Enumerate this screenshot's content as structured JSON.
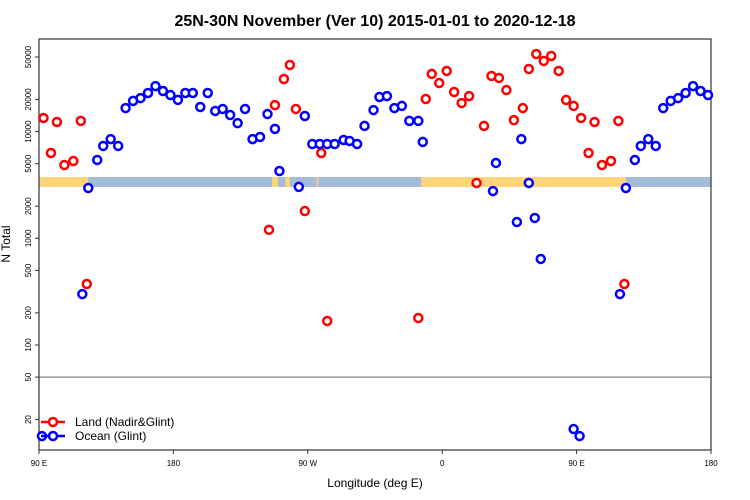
{
  "chart_data": {
    "type": "scatter",
    "title": "25N-30N November (Ver 10)   2015-01-01 to 2020-12-18",
    "xlabel": "Longitude (deg E)",
    "ylabel": "N Total",
    "x_ticks": [
      {
        "lon": 90,
        "label": "90 E"
      },
      {
        "lon": 180,
        "label": "180"
      },
      {
        "lon": -90,
        "label": "90 W"
      },
      {
        "lon": 0,
        "label": "0"
      },
      {
        "lon": 90,
        "label": "90 E"
      },
      {
        "lon": 180,
        "label": "180"
      }
    ],
    "x_range": "90 E to 180 (eastward, 450 degrees; 90 E to 180 shown twice)",
    "y_scale": "log",
    "ylim": [
      8,
      75000
    ],
    "y_ticks": [
      20,
      50,
      100,
      200,
      500,
      1000,
      2000,
      5000,
      10000,
      20000,
      50000
    ],
    "reference_line_y": 50,
    "grid": false,
    "legend_position": "bottom-left",
    "colors": {
      "land": "#ff0000",
      "ocean": "#0000ff",
      "band_land": "#fed679",
      "band_ocean": "#a6bbd8",
      "refline": "#9a9a9a"
    },
    "surface_band_land_lon_ranges": [
      [
        -114,
        -110
      ],
      [
        -105,
        -102
      ],
      [
        -84,
        -83
      ],
      [
        -14,
        123
      ]
    ],
    "series": [
      {
        "name": "Land (Nadir&Glint)",
        "points": [
          [
            -116,
            1200
          ],
          [
            -112,
            17700
          ],
          [
            -106,
            31100
          ],
          [
            -102,
            42100
          ],
          [
            -98,
            16300
          ],
          [
            -92,
            1800
          ],
          [
            -81,
            6300
          ],
          [
            -77,
            168
          ],
          [
            -16,
            179
          ],
          [
            -11,
            20200
          ],
          [
            -7,
            34700
          ],
          [
            -2,
            28500
          ],
          [
            3,
            37000
          ],
          [
            8,
            23500
          ],
          [
            13,
            18500
          ],
          [
            18,
            21500
          ],
          [
            23,
            3300
          ],
          [
            28,
            11300
          ],
          [
            33,
            33200
          ],
          [
            38,
            31800
          ],
          [
            43,
            24500
          ],
          [
            48,
            12800
          ],
          [
            54,
            16600
          ],
          [
            58,
            38600
          ],
          [
            63,
            53300
          ],
          [
            68,
            45900
          ],
          [
            73,
            51100
          ],
          [
            78,
            37000
          ],
          [
            83,
            19800
          ],
          [
            88,
            17400
          ],
          [
            93,
            13400
          ],
          [
            98,
            6300
          ],
          [
            102,
            12300
          ],
          [
            107,
            4860
          ],
          [
            113,
            5300
          ],
          [
            118,
            12600
          ],
          [
            122,
            373
          ]
        ]
      },
      {
        "name": "Ocean (Glint)",
        "points": [
          [
            -177,
            19800
          ],
          [
            -172,
            23000
          ],
          [
            -167,
            23000
          ],
          [
            -162,
            17000
          ],
          [
            -157,
            23000
          ],
          [
            -152,
            15600
          ],
          [
            -147,
            16300
          ],
          [
            -142,
            14300
          ],
          [
            -137,
            12000
          ],
          [
            -132,
            16300
          ],
          [
            -127,
            8500
          ],
          [
            -122,
            8900
          ],
          [
            -117,
            14600
          ],
          [
            -112,
            10600
          ],
          [
            -109,
            4270
          ],
          [
            -96,
            3030
          ],
          [
            -92,
            14000
          ],
          [
            -87,
            7650
          ],
          [
            -82,
            7650
          ],
          [
            -77,
            7650
          ],
          [
            -72,
            7650
          ],
          [
            -66,
            8340
          ],
          [
            -62,
            8170
          ],
          [
            -57,
            7650
          ],
          [
            -52,
            11300
          ],
          [
            -46,
            15900
          ],
          [
            -42,
            21100
          ],
          [
            -37,
            21500
          ],
          [
            -32,
            16600
          ],
          [
            -27,
            17400
          ],
          [
            -22,
            12600
          ],
          [
            -16,
            12600
          ],
          [
            -13,
            8000
          ],
          [
            34,
            2770
          ],
          [
            36,
            5080
          ],
          [
            50,
            1420
          ],
          [
            53,
            8500
          ],
          [
            58,
            3300
          ],
          [
            62,
            1550
          ],
          [
            66,
            640
          ],
          [
            88,
            16.3
          ],
          [
            92,
            14.0
          ],
          [
            119,
            300
          ],
          [
            123,
            2960
          ],
          [
            129,
            5420
          ],
          [
            133,
            7330
          ],
          [
            138,
            8500
          ],
          [
            143,
            7330
          ],
          [
            148,
            16600
          ],
          [
            153,
            19400
          ],
          [
            158,
            20600
          ],
          [
            163,
            23000
          ],
          [
            168,
            26700
          ],
          [
            173,
            24000
          ],
          [
            178,
            22000
          ]
        ]
      }
    ]
  }
}
